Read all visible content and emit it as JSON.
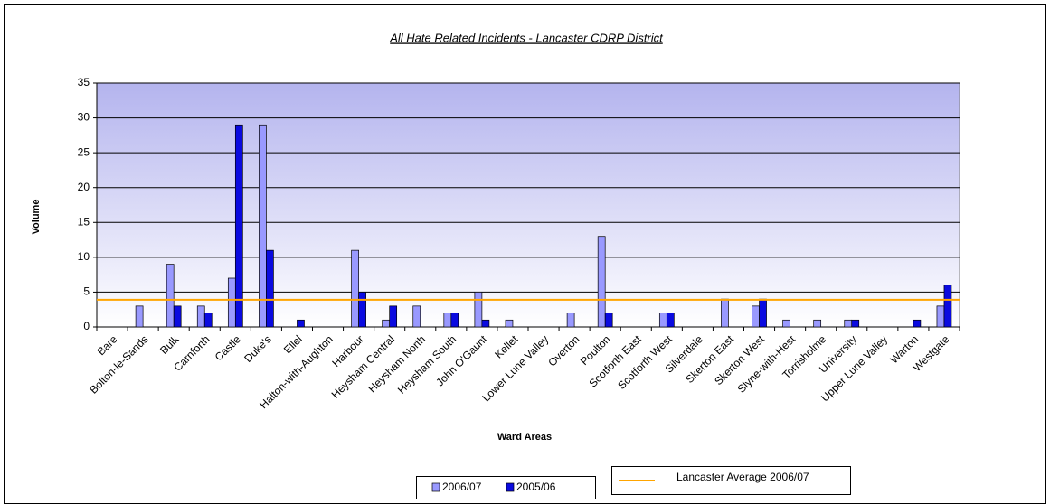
{
  "chart_data": {
    "type": "bar",
    "title": "All Hate Related Incidents - Lancaster CDRP District",
    "x_label": "Ward Areas",
    "y_label": "Volume",
    "categories": [
      "Bare",
      "Bolton-le-Sands",
      "Bulk",
      "Carnforth",
      "Castle",
      "Duke's",
      "Ellel",
      "Halton-with-Aughton",
      "Harbour",
      "Heysham Central",
      "Heysham North",
      "Heysham South",
      "John O'Gaunt",
      "Kellet",
      "Lower Lune Valley",
      "Overton",
      "Poulton",
      "Scotforth East",
      "Scotforth West",
      "Silverdale",
      "Skerton East",
      "Skerton West",
      "Slyne-with-Hest",
      "Torrisholme",
      "University",
      "Upper Lune Valley",
      "Warton",
      "Westgate"
    ],
    "series": [
      {
        "name": "2006/07",
        "color": "#9999ff",
        "values": [
          0,
          3,
          9,
          3,
          7,
          29,
          0,
          0,
          11,
          1,
          3,
          2,
          5,
          1,
          0,
          2,
          13,
          0,
          2,
          0,
          4,
          3,
          1,
          1,
          1,
          0,
          0,
          3
        ]
      },
      {
        "name": "2005/06",
        "color": "#0a0ae0",
        "values": [
          0,
          0,
          3,
          2,
          29,
          11,
          1,
          0,
          5,
          3,
          0,
          2,
          1,
          0,
          0,
          0,
          2,
          0,
          2,
          0,
          0,
          4,
          0,
          0,
          1,
          0,
          1,
          6
        ]
      }
    ],
    "average": {
      "name": "Lancaster Average 2006/07",
      "value": 3.9,
      "color": "#ffa500"
    },
    "ylim": [
      0,
      35
    ],
    "yticks": [
      0,
      5,
      10,
      15,
      20,
      25,
      30,
      35
    ],
    "grid": true
  }
}
